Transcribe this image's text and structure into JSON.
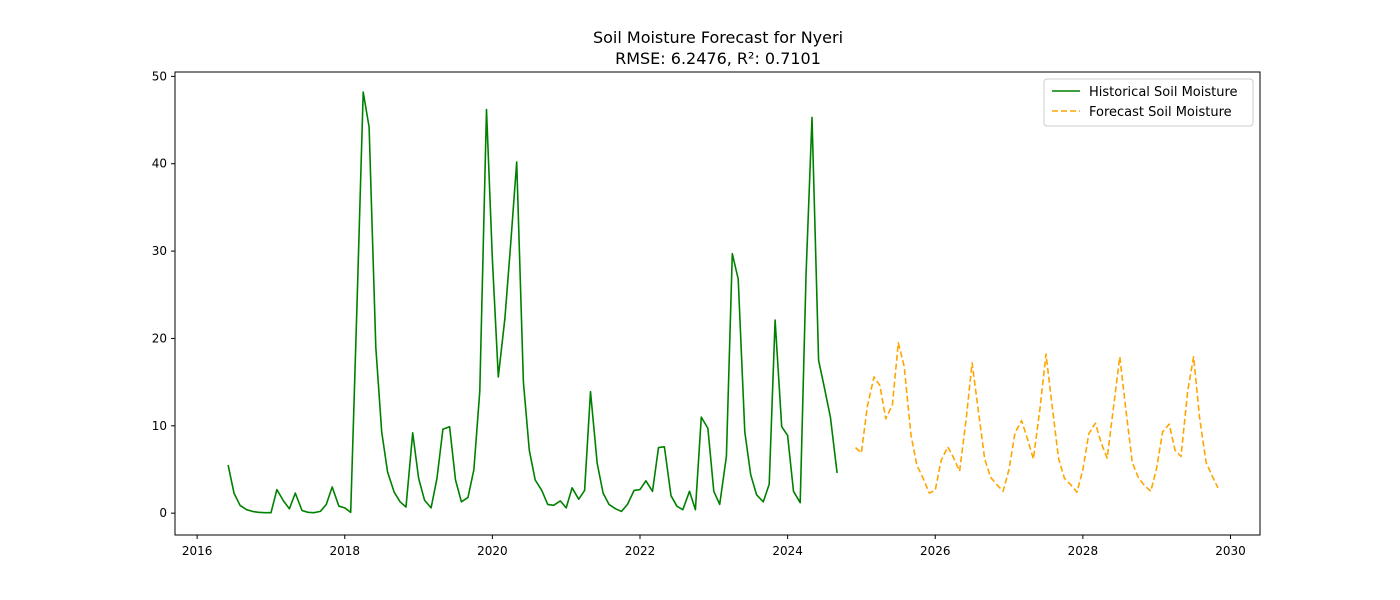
{
  "chart_data": {
    "type": "line",
    "title": "Soil Moisture Forecast for Nyeri",
    "subtitle": "RMSE: 6.2476, R²: 0.7101",
    "xlabel": "",
    "ylabel": "",
    "xlim": [
      2015.7,
      2030.4
    ],
    "ylim": [
      -2.5,
      50.5
    ],
    "x_ticks": [
      2016,
      2018,
      2020,
      2022,
      2024,
      2026,
      2028,
      2030
    ],
    "y_ticks": [
      0,
      10,
      20,
      30,
      40,
      50
    ],
    "grid": false,
    "legend_position": "top-right",
    "series": [
      {
        "name": "Historical Soil Moisture",
        "color": "#008000",
        "style": "solid",
        "points": [
          [
            2016.42,
            5.5
          ],
          [
            2016.5,
            2.3
          ],
          [
            2016.58,
            0.9
          ],
          [
            2016.67,
            0.4
          ],
          [
            2016.75,
            0.2
          ],
          [
            2016.83,
            0.1
          ],
          [
            2016.92,
            0.05
          ],
          [
            2017.0,
            0.05
          ],
          [
            2017.08,
            2.7
          ],
          [
            2017.17,
            1.4
          ],
          [
            2017.25,
            0.5
          ],
          [
            2017.33,
            2.3
          ],
          [
            2017.42,
            0.3
          ],
          [
            2017.5,
            0.1
          ],
          [
            2017.58,
            0.05
          ],
          [
            2017.67,
            0.2
          ],
          [
            2017.75,
            1.0
          ],
          [
            2017.83,
            3.0
          ],
          [
            2017.92,
            0.8
          ],
          [
            2018.0,
            0.6
          ],
          [
            2018.08,
            0.1
          ],
          [
            2018.17,
            25.0
          ],
          [
            2018.25,
            48.2
          ],
          [
            2018.33,
            44.2
          ],
          [
            2018.42,
            19.0
          ],
          [
            2018.5,
            9.3
          ],
          [
            2018.58,
            4.7
          ],
          [
            2018.67,
            2.4
          ],
          [
            2018.75,
            1.3
          ],
          [
            2018.83,
            0.7
          ],
          [
            2018.92,
            9.2
          ],
          [
            2019.0,
            4.0
          ],
          [
            2019.08,
            1.5
          ],
          [
            2019.17,
            0.6
          ],
          [
            2019.25,
            4.0
          ],
          [
            2019.33,
            9.6
          ],
          [
            2019.42,
            9.9
          ],
          [
            2019.5,
            3.8
          ],
          [
            2019.58,
            1.3
          ],
          [
            2019.67,
            1.8
          ],
          [
            2019.75,
            5.0
          ],
          [
            2019.83,
            14.0
          ],
          [
            2019.92,
            46.2
          ],
          [
            2020.0,
            29.0
          ],
          [
            2020.08,
            15.6
          ],
          [
            2020.17,
            22.3
          ],
          [
            2020.25,
            31.0
          ],
          [
            2020.33,
            40.2
          ],
          [
            2020.42,
            15.0
          ],
          [
            2020.5,
            7.2
          ],
          [
            2020.58,
            3.8
          ],
          [
            2020.67,
            2.6
          ],
          [
            2020.75,
            1.0
          ],
          [
            2020.83,
            0.9
          ],
          [
            2020.92,
            1.4
          ],
          [
            2021.0,
            0.6
          ],
          [
            2021.08,
            2.9
          ],
          [
            2021.17,
            1.6
          ],
          [
            2021.25,
            2.6
          ],
          [
            2021.33,
            13.9
          ],
          [
            2021.42,
            5.7
          ],
          [
            2021.5,
            2.3
          ],
          [
            2021.58,
            1.0
          ],
          [
            2021.67,
            0.5
          ],
          [
            2021.75,
            0.2
          ],
          [
            2021.83,
            1.0
          ],
          [
            2021.92,
            2.6
          ],
          [
            2022.0,
            2.7
          ],
          [
            2022.08,
            3.7
          ],
          [
            2022.17,
            2.5
          ],
          [
            2022.25,
            7.5
          ],
          [
            2022.33,
            7.6
          ],
          [
            2022.42,
            2.0
          ],
          [
            2022.5,
            0.8
          ],
          [
            2022.58,
            0.4
          ],
          [
            2022.67,
            2.5
          ],
          [
            2022.75,
            0.4
          ],
          [
            2022.83,
            11.0
          ],
          [
            2022.92,
            9.7
          ],
          [
            2023.0,
            2.5
          ],
          [
            2023.08,
            1.0
          ],
          [
            2023.17,
            6.5
          ],
          [
            2023.25,
            29.7
          ],
          [
            2023.33,
            26.8
          ],
          [
            2023.42,
            9.3
          ],
          [
            2023.5,
            4.4
          ],
          [
            2023.58,
            2.1
          ],
          [
            2023.67,
            1.3
          ],
          [
            2023.75,
            3.3
          ],
          [
            2023.83,
            22.1
          ],
          [
            2023.92,
            9.9
          ],
          [
            2024.0,
            8.9
          ],
          [
            2024.08,
            2.5
          ],
          [
            2024.17,
            1.2
          ],
          [
            2024.25,
            27.5
          ],
          [
            2024.33,
            45.3
          ],
          [
            2024.42,
            17.5
          ],
          [
            2024.5,
            14.3
          ],
          [
            2024.58,
            11.0
          ],
          [
            2024.67,
            4.6
          ]
        ]
      },
      {
        "name": "Forecast Soil Moisture",
        "color": "#ffa500",
        "style": "dashed",
        "points": [
          [
            2024.92,
            7.5
          ],
          [
            2025.0,
            6.9
          ],
          [
            2025.08,
            12.2
          ],
          [
            2025.17,
            15.6
          ],
          [
            2025.25,
            14.6
          ],
          [
            2025.33,
            10.8
          ],
          [
            2025.42,
            12.4
          ],
          [
            2025.5,
            19.5
          ],
          [
            2025.58,
            16.8
          ],
          [
            2025.67,
            9.0
          ],
          [
            2025.75,
            5.5
          ],
          [
            2025.83,
            4.1
          ],
          [
            2025.92,
            2.3
          ],
          [
            2026.0,
            2.6
          ],
          [
            2026.08,
            6.0
          ],
          [
            2026.17,
            7.6
          ],
          [
            2026.25,
            6.3
          ],
          [
            2026.33,
            4.8
          ],
          [
            2026.42,
            10.8
          ],
          [
            2026.5,
            17.2
          ],
          [
            2026.58,
            12.0
          ],
          [
            2026.67,
            6.2
          ],
          [
            2026.75,
            4.1
          ],
          [
            2026.83,
            3.3
          ],
          [
            2026.92,
            2.5
          ],
          [
            2027.0,
            5.0
          ],
          [
            2027.08,
            9.2
          ],
          [
            2027.17,
            10.6
          ],
          [
            2027.25,
            8.5
          ],
          [
            2027.33,
            6.2
          ],
          [
            2027.42,
            12.0
          ],
          [
            2027.5,
            18.2
          ],
          [
            2027.58,
            12.5
          ],
          [
            2027.67,
            6.3
          ],
          [
            2027.75,
            4.0
          ],
          [
            2027.83,
            3.3
          ],
          [
            2027.92,
            2.4
          ],
          [
            2028.0,
            5.0
          ],
          [
            2028.08,
            9.1
          ],
          [
            2028.17,
            10.3
          ],
          [
            2028.25,
            8.0
          ],
          [
            2028.33,
            6.3
          ],
          [
            2028.42,
            12.5
          ],
          [
            2028.5,
            17.9
          ],
          [
            2028.58,
            12.0
          ],
          [
            2028.67,
            5.8
          ],
          [
            2028.75,
            4.1
          ],
          [
            2028.83,
            3.2
          ],
          [
            2028.92,
            2.5
          ],
          [
            2029.0,
            5.2
          ],
          [
            2029.08,
            9.3
          ],
          [
            2029.17,
            10.2
          ],
          [
            2029.25,
            7.2
          ],
          [
            2029.33,
            6.5
          ],
          [
            2029.42,
            14.0
          ],
          [
            2029.5,
            17.9
          ],
          [
            2029.58,
            11.0
          ],
          [
            2029.67,
            5.8
          ],
          [
            2029.75,
            4.3
          ],
          [
            2029.83,
            2.9
          ]
        ]
      }
    ]
  }
}
